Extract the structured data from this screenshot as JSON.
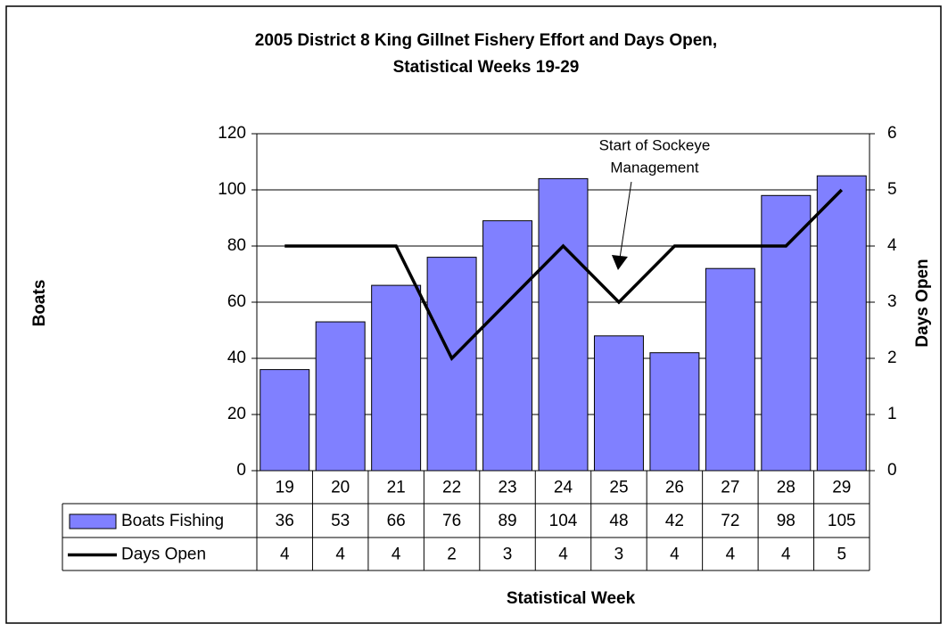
{
  "chart_data": {
    "type": "bar_line_table",
    "title": [
      "2005 District 8 King Gillnet Fishery Effort and Days Open,",
      "Statistical Weeks 19-29"
    ],
    "xlabel": "Statistical Week",
    "ylabel": "Boats",
    "y2label": "Days Open",
    "categories": [
      "19",
      "20",
      "21",
      "22",
      "23",
      "24",
      "25",
      "26",
      "27",
      "28",
      "29"
    ],
    "series": [
      {
        "name": "Boats Fishing",
        "type": "bar",
        "color": "#8080ff",
        "values": [
          36,
          53,
          66,
          76,
          89,
          104,
          48,
          42,
          72,
          98,
          105
        ]
      },
      {
        "name": "Days Open",
        "type": "line",
        "axis": "y2",
        "color": "#000000",
        "values": [
          4,
          4,
          4,
          2,
          3,
          4,
          3,
          4,
          4,
          4,
          5
        ]
      }
    ],
    "ylim": [
      0,
      120
    ],
    "yticks": [
      0,
      20,
      40,
      60,
      80,
      100,
      120
    ],
    "y2lim": [
      0,
      6
    ],
    "y2ticks": [
      0,
      1,
      2,
      3,
      4,
      5,
      6
    ],
    "grid": true,
    "annotation": {
      "text": [
        "Start of Sockeye",
        "Management"
      ],
      "category": "25"
    }
  }
}
